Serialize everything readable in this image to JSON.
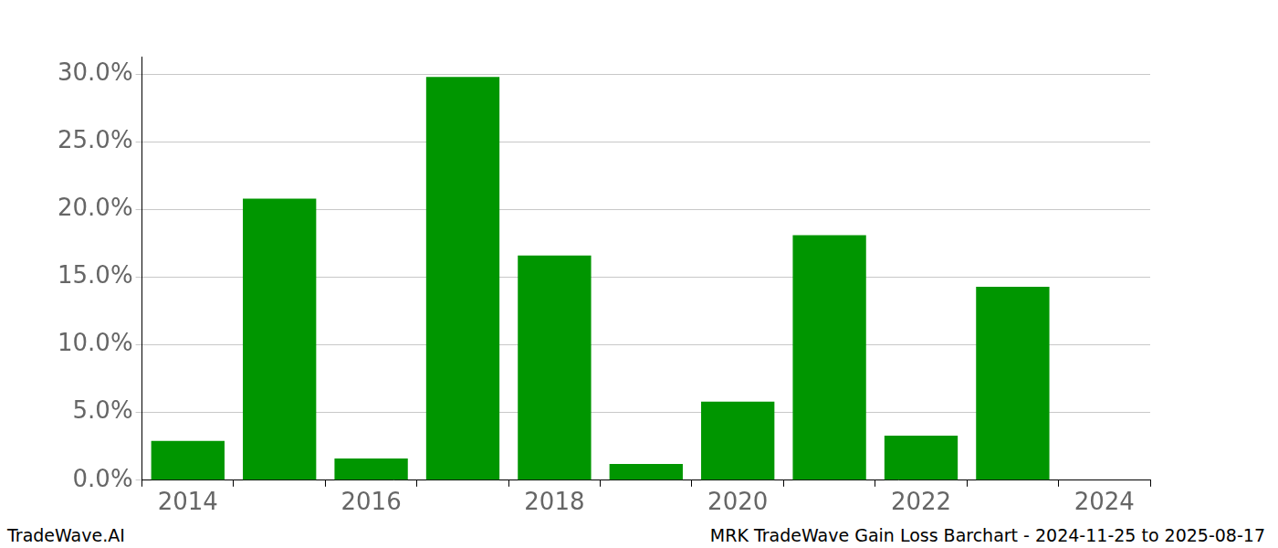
{
  "chart_data": {
    "type": "bar",
    "categories": [
      "2014",
      null,
      "2016",
      null,
      "2018",
      null,
      "2020",
      null,
      "2022",
      null,
      "2024"
    ],
    "values": [
      2.9,
      20.8,
      1.6,
      29.8,
      16.6,
      1.2,
      5.8,
      18.1,
      3.3,
      14.3,
      null
    ],
    "color": "#009600",
    "ylim": [
      0,
      31.3
    ],
    "yticks": [
      {
        "value": 0,
        "label": "0.0%"
      },
      {
        "value": 5,
        "label": "5.0%"
      },
      {
        "value": 10,
        "label": "10.0%"
      },
      {
        "value": 15,
        "label": "15.0%"
      },
      {
        "value": 20,
        "label": "20.0%"
      },
      {
        "value": 25,
        "label": "25.0%"
      },
      {
        "value": 30,
        "label": "30.0%"
      }
    ],
    "grid": true,
    "annotations": [
      "TradeWave.AI",
      "MRK TradeWave Gain Loss Barchart - 2024-11-25 to 2025-08-17"
    ]
  }
}
